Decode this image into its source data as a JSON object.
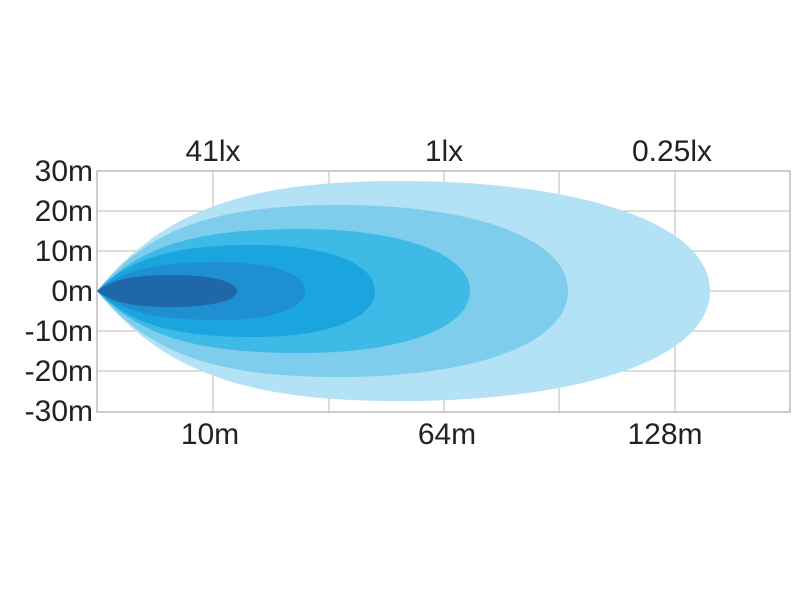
{
  "diagram": {
    "top_labels": [
      "41lx",
      "1lx",
      "0.25lx"
    ],
    "y_labels": [
      "30m",
      "20m",
      "10m",
      "0m",
      "-10m",
      "-20m",
      "-30m"
    ],
    "bottom_labels": [
      "10m",
      "64m",
      "128m"
    ]
  }
}
